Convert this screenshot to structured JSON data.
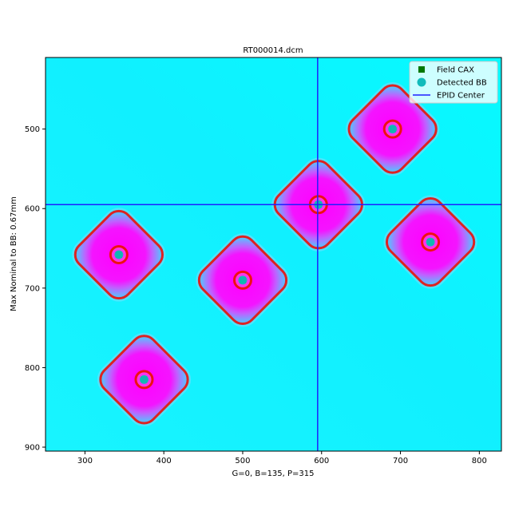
{
  "chart_data": {
    "type": "image",
    "title": "RT000014.dcm",
    "xlabel": "G=0, B=135, P=315",
    "ylabel": "Max Nominal to BB: 0.67mm",
    "xlim": [
      250,
      828
    ],
    "ylim": [
      905,
      410
    ],
    "y_inverted": true,
    "grid": false,
    "legend_position": "top-right",
    "xticks": [
      300,
      400,
      500,
      600,
      700,
      800
    ],
    "yticks": [
      500,
      600,
      700,
      800,
      900
    ],
    "xtick_labels": [
      "300",
      "400",
      "500",
      "600",
      "700",
      "800"
    ],
    "ytick_labels": [
      "500",
      "600",
      "700",
      "800",
      "900"
    ],
    "background_color": "#00ffff",
    "field_color": "#ff00ff",
    "field_edge_color": "#dd2222",
    "bb_ring_color": "#ee1111",
    "epid_center": {
      "x": 595,
      "y": 595
    },
    "fields": [
      {
        "cax_x": 690,
        "cax_y": 500,
        "bb_x": 690,
        "bb_y": 500,
        "half_width": 62,
        "rotation_deg": 45
      },
      {
        "cax_x": 596,
        "cax_y": 595,
        "bb_x": 596,
        "bb_y": 595,
        "half_width": 62,
        "rotation_deg": 45
      },
      {
        "cax_x": 343,
        "cax_y": 658,
        "bb_x": 343,
        "bb_y": 658,
        "half_width": 62,
        "rotation_deg": 45
      },
      {
        "cax_x": 500,
        "cax_y": 690,
        "bb_x": 500,
        "bb_y": 690,
        "half_width": 62,
        "rotation_deg": 45
      },
      {
        "cax_x": 738,
        "cax_y": 642,
        "bb_x": 738,
        "bb_y": 642,
        "half_width": 62,
        "rotation_deg": 45
      },
      {
        "cax_x": 375,
        "cax_y": 815,
        "bb_x": 375,
        "bb_y": 815,
        "half_width": 62,
        "rotation_deg": 45
      }
    ],
    "legend": [
      {
        "label": "Field CAX",
        "marker": "square",
        "color": "#007700"
      },
      {
        "label": "Detected BB",
        "marker": "circle",
        "color": "#11bbbb"
      },
      {
        "label": "EPID Center",
        "marker": "line",
        "color": "#1f1fff"
      }
    ]
  }
}
